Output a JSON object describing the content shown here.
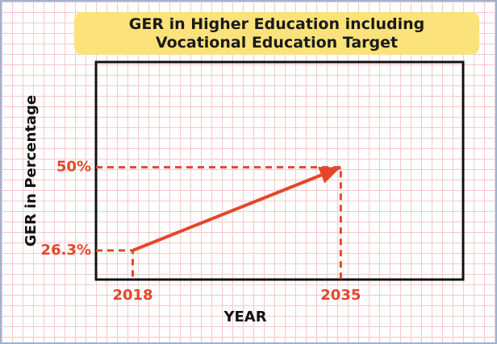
{
  "chart_data": {
    "type": "line",
    "title": "GER in Higher Education including Vocational Education Target",
    "x_label": "YEAR",
    "y_label": "GER in Percentage",
    "x": [
      2018,
      2035
    ],
    "series": [
      {
        "color": "#e5462b",
        "values": [
          26.3,
          50
        ],
        "value_labels": [
          "26.3%",
          "50%"
        ]
      }
    ],
    "xlim": [
      2015,
      2045
    ],
    "xticks": [
      2018,
      2035
    ],
    "ylim": [
      18,
      80
    ]
  }
}
